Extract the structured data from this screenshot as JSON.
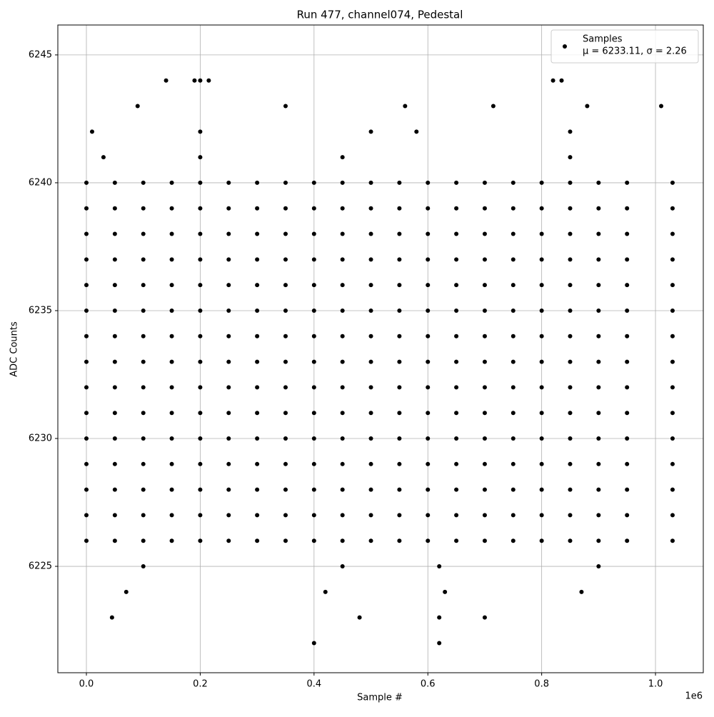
{
  "chart_data": {
    "type": "scatter",
    "title": "Run 477, channel074, Pedestal",
    "x_label": "Sample #",
    "y_label": "ADC Counts",
    "x_offset_label": "1e6",
    "legend_note": "μ = 6233.11, σ = 2.26",
    "legend_position": "upper right",
    "grid": true,
    "xlim": [
      -0.0502,
      1.084
    ],
    "ylim": [
      6220.84,
      6246.17
    ],
    "xticks": [
      {
        "value": 0,
        "label": "0.0"
      },
      0.2,
      0.4,
      0.6,
      0.8,
      {
        "value": 1,
        "label": "1.0"
      }
    ],
    "yticks": [
      6225,
      6230,
      6235,
      6240,
      6245
    ],
    "series": [
      {
        "name": "Samples",
        "color": "#000000",
        "x": [
          0,
          0.05,
          0.1,
          0.15,
          0.2,
          0.25,
          0.3,
          0.35,
          0.4,
          0.45,
          0.5,
          0.55,
          0.6,
          0.65,
          0.7,
          0.75,
          0.8,
          0.85,
          0.9,
          0.95,
          1.03,
          0,
          0.05,
          0.1,
          0.15,
          0.2,
          0.25,
          0.3,
          0.35,
          0.4,
          0.45,
          0.5,
          0.55,
          0.6,
          0.65,
          0.7,
          0.75,
          0.8,
          0.85,
          0.9,
          0.95,
          1.03,
          0,
          0.05,
          0.1,
          0.15,
          0.2,
          0.25,
          0.3,
          0.35,
          0.4,
          0.45,
          0.5,
          0.55,
          0.6,
          0.65,
          0.7,
          0.75,
          0.8,
          0.85,
          0.9,
          0.95,
          1.03,
          0,
          0.05,
          0.1,
          0.15,
          0.2,
          0.25,
          0.3,
          0.35,
          0.4,
          0.45,
          0.5,
          0.55,
          0.6,
          0.65,
          0.7,
          0.75,
          0.8,
          0.85,
          0.9,
          0.95,
          1.03,
          0,
          0.05,
          0.1,
          0.15,
          0.2,
          0.25,
          0.3,
          0.35,
          0.4,
          0.45,
          0.5,
          0.55,
          0.6,
          0.65,
          0.7,
          0.75,
          0.8,
          0.85,
          0.9,
          0.95,
          1.03,
          0,
          0.05,
          0.1,
          0.15,
          0.2,
          0.25,
          0.3,
          0.35,
          0.4,
          0.45,
          0.5,
          0.55,
          0.6,
          0.65,
          0.7,
          0.75,
          0.8,
          0.85,
          0.9,
          0.95,
          1.03,
          0,
          0.05,
          0.1,
          0.15,
          0.2,
          0.25,
          0.3,
          0.35,
          0.4,
          0.45,
          0.5,
          0.55,
          0.6,
          0.65,
          0.7,
          0.75,
          0.8,
          0.85,
          0.9,
          0.95,
          1.03,
          0,
          0.05,
          0.1,
          0.15,
          0.2,
          0.25,
          0.3,
          0.35,
          0.4,
          0.45,
          0.5,
          0.55,
          0.6,
          0.65,
          0.7,
          0.75,
          0.8,
          0.85,
          0.9,
          0.95,
          1.03,
          0,
          0.05,
          0.1,
          0.15,
          0.2,
          0.25,
          0.3,
          0.35,
          0.4,
          0.45,
          0.5,
          0.55,
          0.6,
          0.65,
          0.7,
          0.75,
          0.8,
          0.85,
          0.9,
          0.95,
          1.03,
          0,
          0.05,
          0.1,
          0.15,
          0.2,
          0.25,
          0.3,
          0.35,
          0.4,
          0.45,
          0.5,
          0.55,
          0.6,
          0.65,
          0.7,
          0.75,
          0.8,
          0.85,
          0.9,
          0.95,
          1.03,
          0,
          0.05,
          0.1,
          0.15,
          0.2,
          0.25,
          0.3,
          0.35,
          0.4,
          0.45,
          0.5,
          0.55,
          0.6,
          0.65,
          0.7,
          0.75,
          0.8,
          0.85,
          0.9,
          0.95,
          1.03,
          0,
          0.05,
          0.1,
          0.15,
          0.2,
          0.25,
          0.3,
          0.35,
          0.4,
          0.45,
          0.5,
          0.55,
          0.6,
          0.65,
          0.7,
          0.75,
          0.8,
          0.85,
          0.9,
          0.95,
          1.03,
          0,
          0.05,
          0.1,
          0.15,
          0.2,
          0.25,
          0.3,
          0.35,
          0.4,
          0.45,
          0.5,
          0.55,
          0.6,
          0.65,
          0.7,
          0.75,
          0.8,
          0.85,
          0.9,
          0.95,
          1.03,
          0,
          0.05,
          0.1,
          0.15,
          0.2,
          0.25,
          0.3,
          0.35,
          0.4,
          0.45,
          0.5,
          0.55,
          0.6,
          0.65,
          0.7,
          0.75,
          0.8,
          0.85,
          0.9,
          0.95,
          1.03,
          0,
          0.05,
          0.1,
          0.15,
          0.2,
          0.25,
          0.3,
          0.35,
          0.4,
          0.45,
          0.5,
          0.55,
          0.6,
          0.65,
          0.7,
          0.75,
          0.8,
          0.85,
          0.9,
          0.95,
          1.03,
          0.14,
          0.19,
          0.2,
          0.215,
          0.82,
          0.835,
          0.09,
          0.35,
          0.56,
          0.715,
          0.88,
          1.01,
          0.01,
          0.2,
          0.5,
          0.58,
          0.85,
          0.03,
          0.2,
          0.45,
          0.85,
          0.1,
          0.45,
          0.62,
          0.9,
          0.07,
          0.42,
          0.63,
          0.87,
          0.045,
          0.48,
          0.62,
          0.7,
          0.4,
          0.62
        ],
        "values": [
          6240,
          6240,
          6240,
          6240,
          6240,
          6240,
          6240,
          6240,
          6240,
          6240,
          6240,
          6240,
          6240,
          6240,
          6240,
          6240,
          6240,
          6240,
          6240,
          6240,
          6240,
          6239,
          6239,
          6239,
          6239,
          6239,
          6239,
          6239,
          6239,
          6239,
          6239,
          6239,
          6239,
          6239,
          6239,
          6239,
          6239,
          6239,
          6239,
          6239,
          6239,
          6239,
          6238,
          6238,
          6238,
          6238,
          6238,
          6238,
          6238,
          6238,
          6238,
          6238,
          6238,
          6238,
          6238,
          6238,
          6238,
          6238,
          6238,
          6238,
          6238,
          6238,
          6238,
          6237,
          6237,
          6237,
          6237,
          6237,
          6237,
          6237,
          6237,
          6237,
          6237,
          6237,
          6237,
          6237,
          6237,
          6237,
          6237,
          6237,
          6237,
          6237,
          6237,
          6237,
          6236,
          6236,
          6236,
          6236,
          6236,
          6236,
          6236,
          6236,
          6236,
          6236,
          6236,
          6236,
          6236,
          6236,
          6236,
          6236,
          6236,
          6236,
          6236,
          6236,
          6236,
          6235,
          6235,
          6235,
          6235,
          6235,
          6235,
          6235,
          6235,
          6235,
          6235,
          6235,
          6235,
          6235,
          6235,
          6235,
          6235,
          6235,
          6235,
          6235,
          6235,
          6235,
          6234,
          6234,
          6234,
          6234,
          6234,
          6234,
          6234,
          6234,
          6234,
          6234,
          6234,
          6234,
          6234,
          6234,
          6234,
          6234,
          6234,
          6234,
          6234,
          6234,
          6234,
          6233,
          6233,
          6233,
          6233,
          6233,
          6233,
          6233,
          6233,
          6233,
          6233,
          6233,
          6233,
          6233,
          6233,
          6233,
          6233,
          6233,
          6233,
          6233,
          6233,
          6233,
          6232,
          6232,
          6232,
          6232,
          6232,
          6232,
          6232,
          6232,
          6232,
          6232,
          6232,
          6232,
          6232,
          6232,
          6232,
          6232,
          6232,
          6232,
          6232,
          6232,
          6232,
          6231,
          6231,
          6231,
          6231,
          6231,
          6231,
          6231,
          6231,
          6231,
          6231,
          6231,
          6231,
          6231,
          6231,
          6231,
          6231,
          6231,
          6231,
          6231,
          6231,
          6231,
          6230,
          6230,
          6230,
          6230,
          6230,
          6230,
          6230,
          6230,
          6230,
          6230,
          6230,
          6230,
          6230,
          6230,
          6230,
          6230,
          6230,
          6230,
          6230,
          6230,
          6230,
          6229,
          6229,
          6229,
          6229,
          6229,
          6229,
          6229,
          6229,
          6229,
          6229,
          6229,
          6229,
          6229,
          6229,
          6229,
          6229,
          6229,
          6229,
          6229,
          6229,
          6229,
          6228,
          6228,
          6228,
          6228,
          6228,
          6228,
          6228,
          6228,
          6228,
          6228,
          6228,
          6228,
          6228,
          6228,
          6228,
          6228,
          6228,
          6228,
          6228,
          6228,
          6228,
          6227,
          6227,
          6227,
          6227,
          6227,
          6227,
          6227,
          6227,
          6227,
          6227,
          6227,
          6227,
          6227,
          6227,
          6227,
          6227,
          6227,
          6227,
          6227,
          6227,
          6227,
          6226,
          6226,
          6226,
          6226,
          6226,
          6226,
          6226,
          6226,
          6226,
          6226,
          6226,
          6226,
          6226,
          6226,
          6226,
          6226,
          6226,
          6226,
          6226,
          6226,
          6226,
          6244,
          6244,
          6244,
          6244,
          6244,
          6244,
          6243,
          6243,
          6243,
          6243,
          6243,
          6243,
          6242,
          6242,
          6242,
          6242,
          6242,
          6241,
          6241,
          6241,
          6241,
          6225,
          6225,
          6225,
          6225,
          6224,
          6224,
          6224,
          6224,
          6223,
          6223,
          6223,
          6223,
          6222,
          6222
        ]
      }
    ]
  }
}
